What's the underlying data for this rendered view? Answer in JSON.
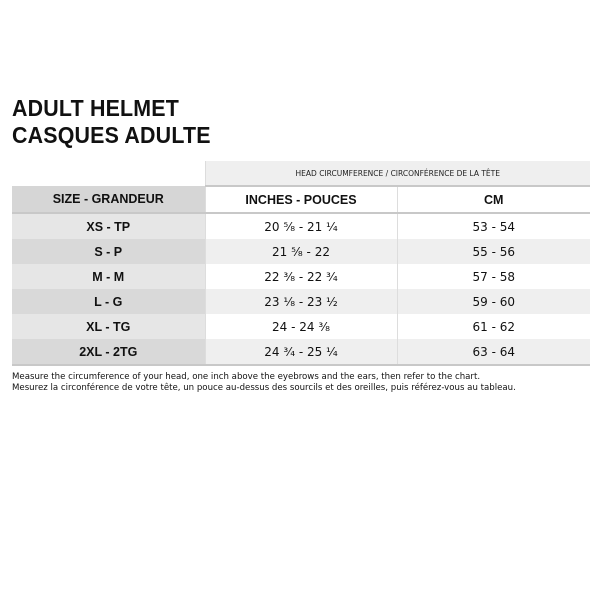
{
  "title": [
    "ADULT HELMET",
    "CASQUES ADULTE"
  ],
  "table": {
    "group_header": "HEAD CIRCUMFERENCE / CIRCONFÉRENCE DE LA TÊTE",
    "columns": [
      "SIZE - GRANDEUR",
      "INCHES - POUCES",
      "CM"
    ],
    "rows": [
      {
        "size": "XS - TP",
        "inches": "20 ⁵⁄₈ - 21 ¹⁄₄",
        "cm": "53 - 54"
      },
      {
        "size": "S - P",
        "inches": "21 ⁵⁄₈ - 22",
        "cm": "55 - 56"
      },
      {
        "size": "M - M",
        "inches": "22 ³⁄₈ - 22 ³⁄₄",
        "cm": "57 - 58"
      },
      {
        "size": "L - G",
        "inches": "23 ¹⁄₈ - 23 ¹⁄₂",
        "cm": "59 - 60"
      },
      {
        "size": "XL - TG",
        "inches": "24 - 24 ³⁄₈",
        "cm": "61 - 62"
      },
      {
        "size": "2XL - 2TG",
        "inches": "24 ³⁄₄ - 25 ¹⁄₄",
        "cm": "63 - 64"
      }
    ]
  },
  "notes": [
    "Measure the circumference of your head, one inch above the eyebrows and the ears, then refer to the chart.",
    "Mesurez la circonférence de votre tête, un pouce au-dessus des sourcils et des oreilles, puis référez-vous au tableau."
  ]
}
